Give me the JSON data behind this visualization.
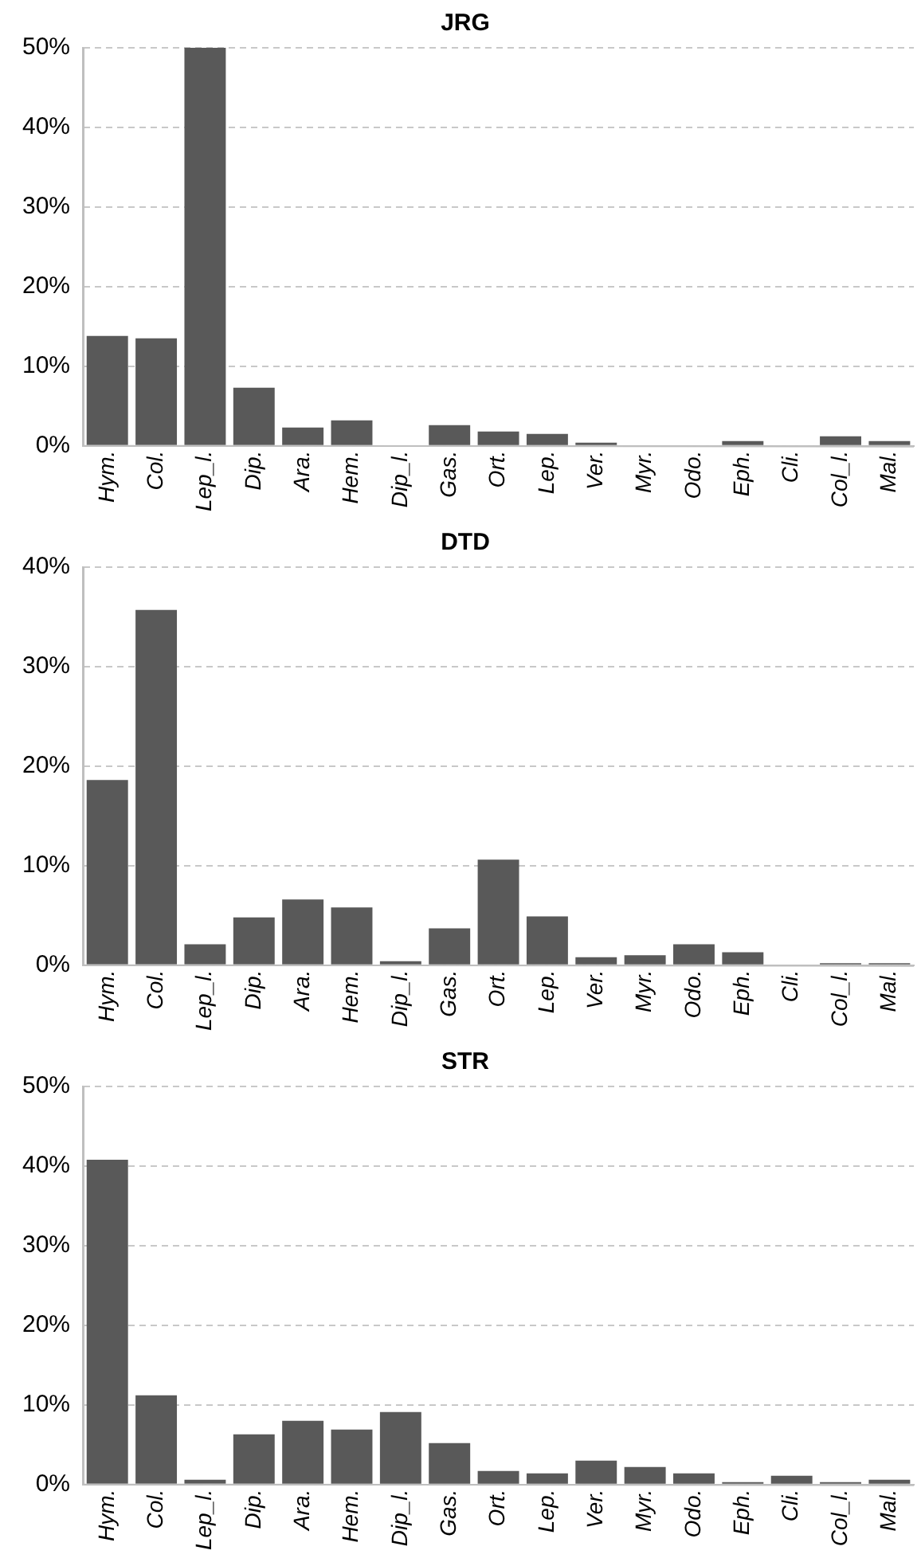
{
  "chart_data": [
    {
      "type": "bar",
      "title": "JRG",
      "categories": [
        "Hym.",
        "Col.",
        "Lep_l.",
        "Dip.",
        "Ara.",
        "Hem.",
        "Dip_l.",
        "Gas.",
        "Ort.",
        "Lep.",
        "Ver.",
        "Myr.",
        "Odo.",
        "Eph.",
        "Cli.",
        "Col_l.",
        "Mal."
      ],
      "values": [
        13.8,
        13.5,
        50,
        7.3,
        2.3,
        3.2,
        0.1,
        2.6,
        1.8,
        1.5,
        0.4,
        0,
        0,
        0.6,
        0,
        1.2,
        0.6
      ],
      "color": "#595959",
      "ylim": [
        0,
        50
      ],
      "yticks": [
        {
          "value": 0,
          "label": "0%"
        },
        {
          "value": 10,
          "label": "10%"
        },
        {
          "value": 20,
          "label": "20%"
        },
        {
          "value": 30,
          "label": "30%"
        },
        {
          "value": 40,
          "label": "40%"
        },
        {
          "value": 50,
          "label": "50%"
        }
      ],
      "grid": "y",
      "legend": false
    },
    {
      "type": "bar",
      "title": "DTD",
      "categories": [
        "Hym.",
        "Col.",
        "Lep_l.",
        "Dip.",
        "Ara.",
        "Hem.",
        "Dip_l.",
        "Gas.",
        "Ort.",
        "Lep.",
        "Ver.",
        "Myr.",
        "Odo.",
        "Eph.",
        "Cli.",
        "Col_l.",
        "Mal."
      ],
      "values": [
        18.6,
        35.7,
        2.1,
        4.8,
        6.6,
        5.8,
        0.4,
        3.7,
        10.6,
        4.9,
        0.8,
        1.0,
        2.1,
        1.3,
        0,
        0.2,
        0.2
      ],
      "color": "#595959",
      "ylim": [
        0,
        40
      ],
      "yticks": [
        {
          "value": 0,
          "label": "0%"
        },
        {
          "value": 10,
          "label": "10%"
        },
        {
          "value": 20,
          "label": "20%"
        },
        {
          "value": 30,
          "label": "30%"
        },
        {
          "value": 40,
          "label": "40%"
        }
      ],
      "grid": "y",
      "legend": false
    },
    {
      "type": "bar",
      "title": "STR",
      "categories": [
        "Hym.",
        "Col.",
        "Lep_l.",
        "Dip.",
        "Ara.",
        "Hem.",
        "Dip_l.",
        "Gas.",
        "Ort.",
        "Lep.",
        "Ver.",
        "Myr.",
        "Odo.",
        "Eph.",
        "Cli.",
        "Col_l.",
        "Mal."
      ],
      "values": [
        40.8,
        11.2,
        0.6,
        6.3,
        8.0,
        6.9,
        9.1,
        5.2,
        1.7,
        1.4,
        3.0,
        2.2,
        1.4,
        0.3,
        1.1,
        0.3,
        0.6
      ],
      "color": "#595959",
      "ylim": [
        0,
        50
      ],
      "yticks": [
        {
          "value": 0,
          "label": "0%"
        },
        {
          "value": 10,
          "label": "10%"
        },
        {
          "value": 20,
          "label": "20%"
        },
        {
          "value": 30,
          "label": "30%"
        },
        {
          "value": 40,
          "label": "40%"
        },
        {
          "value": 50,
          "label": "50%"
        }
      ],
      "grid": "y",
      "legend": false
    }
  ]
}
